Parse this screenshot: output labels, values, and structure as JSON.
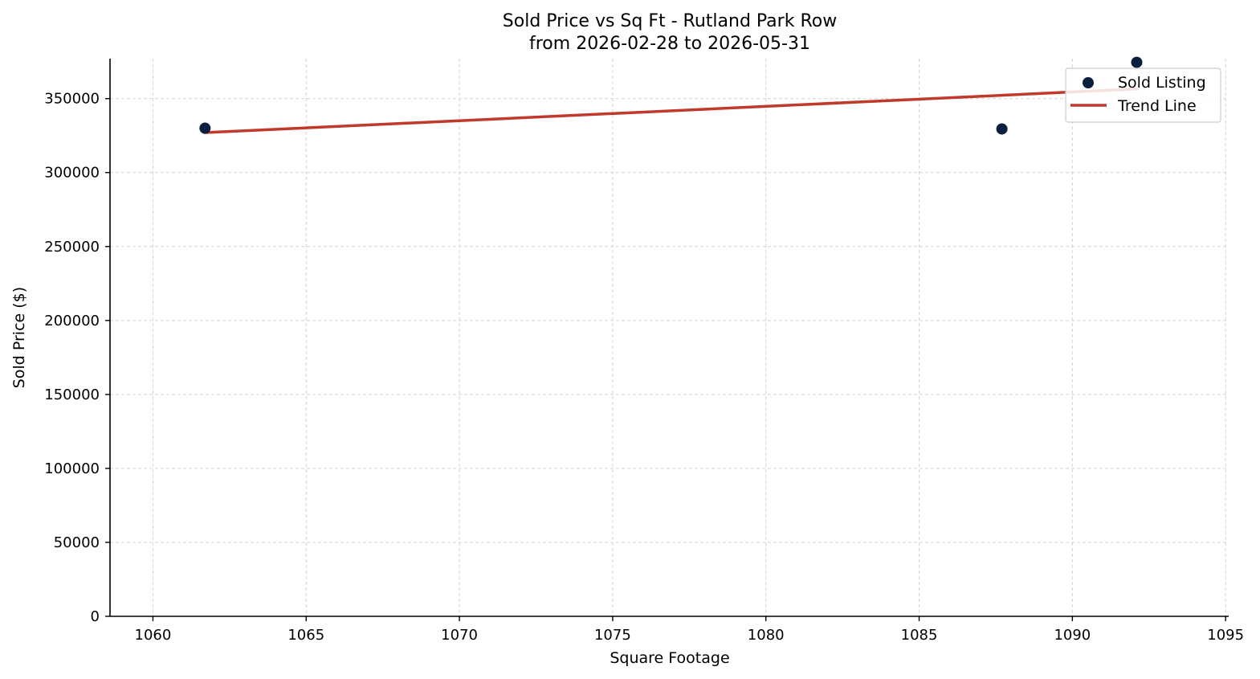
{
  "chart_data": {
    "type": "scatter",
    "title_line1": "Sold Price vs Sq Ft - Rutland Park Row",
    "title_line2": "from 2026-02-28 to 2026-05-31",
    "xlabel": "Square Footage",
    "ylabel": "Sold Price ($)",
    "xlim": [
      1058.6,
      1095.1
    ],
    "ylim": [
      0,
      377000
    ],
    "xticks": [
      1060,
      1065,
      1070,
      1075,
      1080,
      1085,
      1090,
      1095
    ],
    "yticks": [
      0,
      50000,
      100000,
      150000,
      200000,
      250000,
      300000,
      350000
    ],
    "grid": true,
    "legend_position": "top-right",
    "series": [
      {
        "name": "Sold Listing",
        "kind": "scatter",
        "color": "#0a1f3d",
        "points": [
          {
            "x": 1061.7,
            "y": 330000
          },
          {
            "x": 1087.7,
            "y": 329500
          },
          {
            "x": 1092.1,
            "y": 374500
          }
        ]
      },
      {
        "name": "Trend Line",
        "kind": "line",
        "color": "#c0392b",
        "points": [
          {
            "x": 1061.7,
            "y": 327000
          },
          {
            "x": 1092.1,
            "y": 356500
          }
        ]
      }
    ]
  }
}
